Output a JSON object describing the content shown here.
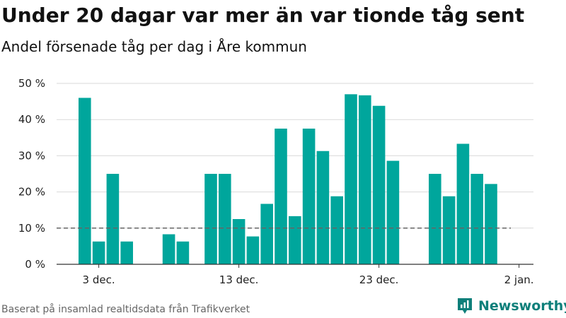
{
  "header": {
    "title": "Under 20 dagar var mer än var tionde tåg sent",
    "subtitle": "Andel försenade tåg per dag i Åre kommun"
  },
  "footer": {
    "source": "Baserat på insamlad realtidsdata från Trafikverket",
    "brand": "Newsworthy",
    "brand_icon": "newsworthy-logo-icon"
  },
  "colors": {
    "bar": "#00a69c",
    "reference_line": "#666666",
    "grid": "#d9d9d9",
    "axis": "#333333",
    "brand": "#0e7f7a"
  },
  "chart_data": {
    "type": "bar",
    "title": "Under 20 dagar var mer än var tionde tåg sent",
    "subtitle": "Andel försenade tåg per dag i Åre kommun",
    "xlabel": "",
    "ylabel": "",
    "categories": [
      "1 dec.",
      "2 dec.",
      "3 dec.",
      "4 dec.",
      "5 dec.",
      "6 dec.",
      "7 dec.",
      "8 dec.",
      "9 dec.",
      "10 dec.",
      "11 dec.",
      "12 dec.",
      "13 dec.",
      "14 dec.",
      "15 dec.",
      "16 dec.",
      "17 dec.",
      "18 dec.",
      "19 dec.",
      "20 dec.",
      "21 dec.",
      "22 dec.",
      "23 dec.",
      "24 dec.",
      "25 dec.",
      "26 dec.",
      "27 dec.",
      "28 dec.",
      "29 dec.",
      "30 dec.",
      "31 dec.",
      "1 jan."
    ],
    "values": [
      null,
      46,
      6.3,
      25,
      6.3,
      null,
      null,
      8.3,
      6.3,
      null,
      25,
      25,
      12.5,
      7.7,
      16.7,
      37.5,
      13.3,
      37.5,
      31.3,
      18.8,
      47,
      46.7,
      43.8,
      28.6,
      null,
      null,
      25,
      18.8,
      33.3,
      25,
      22.2,
      null
    ],
    "ylim": [
      0,
      50
    ],
    "yticks": [
      0,
      10,
      20,
      30,
      40,
      50
    ],
    "ytick_labels": [
      "0 %",
      "10 %",
      "20 %",
      "30 %",
      "40 %",
      "50 %"
    ],
    "xticks": [
      "3 dec.",
      "13 dec.",
      "23 dec.",
      "2 jan."
    ],
    "xtick_positions": [
      2,
      12,
      22,
      32
    ],
    "reference_line": 10,
    "grid": true,
    "legend": "none"
  }
}
